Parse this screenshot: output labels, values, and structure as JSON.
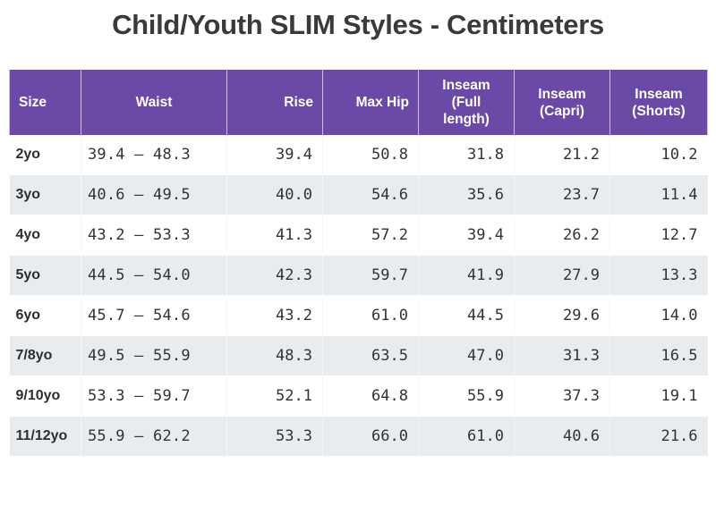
{
  "title": "Child/Youth SLIM Styles - Centimeters",
  "header_color": "#6a4aa6",
  "stripe_color": "#e9ecef",
  "table": {
    "headers": [
      "Size",
      "Waist",
      "Rise",
      "Max Hip",
      "Inseam (Full length)",
      "Inseam (Capri)",
      "Inseam (Shorts)"
    ],
    "rows": [
      [
        "2yo",
        "39.4 – 48.3",
        "39.4",
        "50.8",
        "31.8",
        "21.2",
        "10.2"
      ],
      [
        "3yo",
        "40.6 – 49.5",
        "40.0",
        "54.6",
        "35.6",
        "23.7",
        "11.4"
      ],
      [
        "4yo",
        "43.2 – 53.3",
        "41.3",
        "57.2",
        "39.4",
        "26.2",
        "12.7"
      ],
      [
        "5yo",
        "44.5 – 54.0",
        "42.3",
        "59.7",
        "41.9",
        "27.9",
        "13.3"
      ],
      [
        "6yo",
        "45.7 – 54.6",
        "43.2",
        "61.0",
        "44.5",
        "29.6",
        "14.0"
      ],
      [
        "7/8yo",
        "49.5 – 55.9",
        "48.3",
        "63.5",
        "47.0",
        "31.3",
        "16.5"
      ],
      [
        "9/10yo",
        "53.3 – 59.7",
        "52.1",
        "64.8",
        "55.9",
        "37.3",
        "19.1"
      ],
      [
        "11/12yo",
        "55.9 – 62.2",
        "53.3",
        "66.0",
        "61.0",
        "40.6",
        "21.6"
      ]
    ]
  }
}
